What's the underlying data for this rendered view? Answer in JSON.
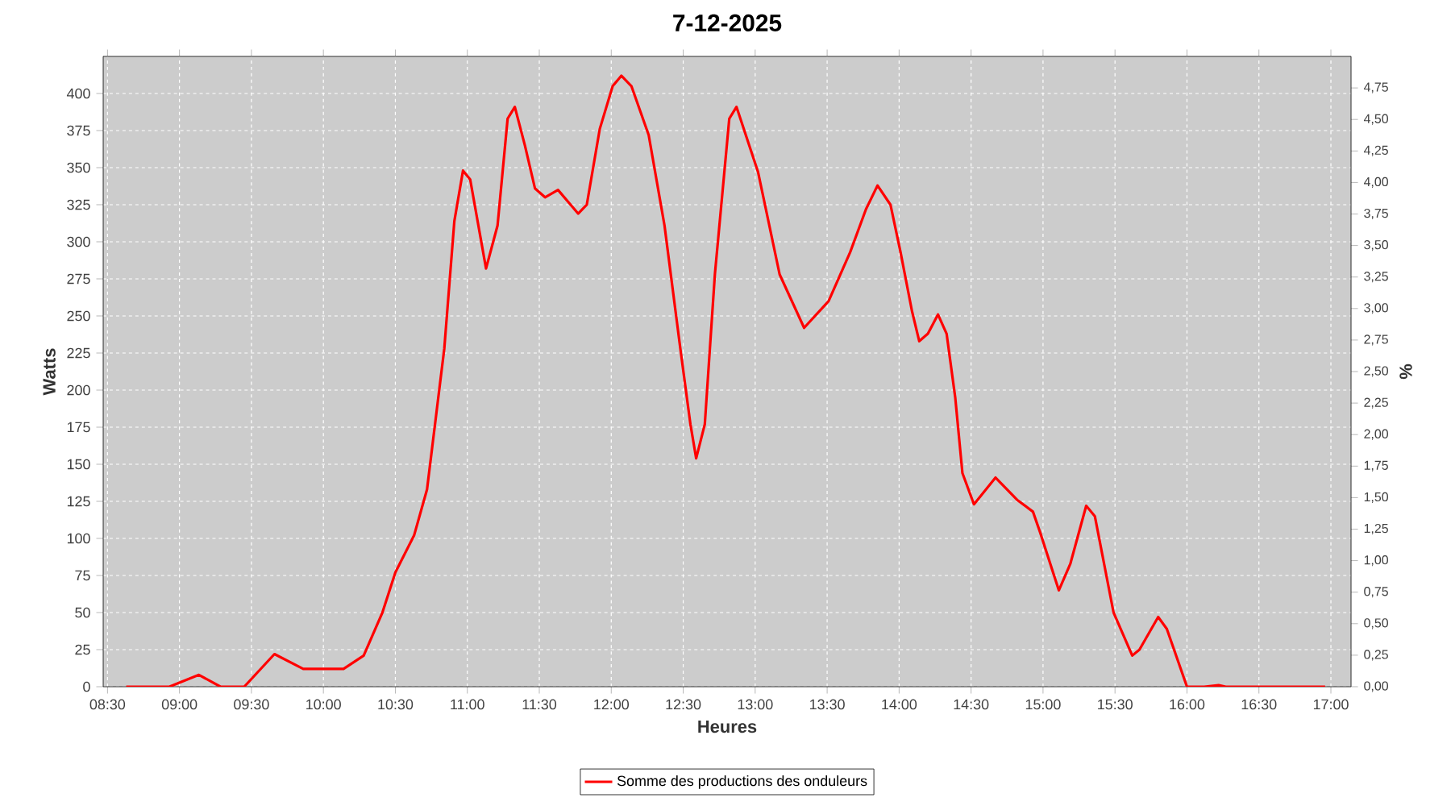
{
  "chart_data": {
    "type": "line",
    "title": "7-12-2025",
    "xlabel": "Heures",
    "ylabel": "Watts",
    "y2label": "%",
    "x": [
      8.63,
      8.87,
      8.93,
      9.135,
      9.285,
      9.45,
      9.66,
      9.86,
      10.14,
      10.28,
      10.41,
      10.5,
      10.63,
      10.72,
      10.84,
      10.91,
      10.97,
      11.02,
      11.13,
      11.21,
      11.28,
      11.33,
      11.4,
      11.47,
      11.54,
      11.63,
      11.77,
      11.83,
      11.92,
      12.01,
      12.07,
      12.14,
      12.26,
      12.37,
      12.48,
      12.55,
      12.59,
      12.65,
      12.72,
      12.82,
      12.87,
      13.02,
      13.17,
      13.34,
      13.51,
      13.66,
      13.77,
      13.85,
      13.94,
      14.01,
      14.09,
      14.14,
      14.2,
      14.27,
      14.33,
      14.39,
      14.44,
      14.52,
      14.67,
      14.82,
      14.93,
      14.98,
      15.11,
      15.19,
      15.3,
      15.36,
      15.49,
      15.62,
      15.67,
      15.8,
      15.86,
      16.0,
      16.12,
      16.22,
      16.27,
      16.96
    ],
    "series": [
      {
        "name": "Somme des productions des onduleurs",
        "color": "#ff0000",
        "values": [
          0,
          0,
          0,
          8,
          0,
          0,
          22,
          12,
          12,
          21,
          50,
          77,
          102,
          133,
          228,
          314,
          348,
          342,
          282,
          311,
          383,
          391,
          365,
          336,
          330,
          335,
          319,
          325,
          376,
          405,
          412,
          405,
          372,
          311,
          228,
          177,
          154,
          177,
          278,
          383,
          391,
          347,
          278,
          242,
          260,
          293,
          322,
          338,
          325,
          293,
          253,
          233,
          238,
          251,
          238,
          195,
          144,
          123,
          141,
          126,
          118,
          104,
          65,
          83,
          122,
          115,
          50,
          21,
          25,
          47,
          39,
          0,
          0,
          1,
          0,
          0
        ]
      }
    ],
    "xlim": [
      8.47,
      17.14
    ],
    "ylim": [
      0,
      425
    ],
    "y2lim": [
      0,
      5
    ],
    "xticks": [
      {
        "value": 8.5,
        "label": "08:30"
      },
      {
        "value": 9,
        "label": "09:00"
      },
      {
        "value": 9.5,
        "label": "09:30"
      },
      {
        "value": 10,
        "label": "10:00"
      },
      {
        "value": 10.5,
        "label": "10:30"
      },
      {
        "value": 11,
        "label": "11:00"
      },
      {
        "value": 11.5,
        "label": "11:30"
      },
      {
        "value": 12,
        "label": "12:00"
      },
      {
        "value": 12.5,
        "label": "12:30"
      },
      {
        "value": 13,
        "label": "13:00"
      },
      {
        "value": 13.5,
        "label": "13:30"
      },
      {
        "value": 14,
        "label": "14:00"
      },
      {
        "value": 14.5,
        "label": "14:30"
      },
      {
        "value": 15,
        "label": "15:00"
      },
      {
        "value": 15.5,
        "label": "15:30"
      },
      {
        "value": 16,
        "label": "16:00"
      },
      {
        "value": 16.5,
        "label": "16:30"
      },
      {
        "value": 17,
        "label": "17:00"
      }
    ],
    "yticks": [
      0,
      25,
      50,
      75,
      100,
      125,
      150,
      175,
      200,
      225,
      250,
      275,
      300,
      325,
      350,
      375,
      400
    ],
    "y2ticks": [
      {
        "value": 0,
        "label": "0,00"
      },
      {
        "value": 0.25,
        "label": "0,25"
      },
      {
        "value": 0.5,
        "label": "0,50"
      },
      {
        "value": 0.75,
        "label": "0,75"
      },
      {
        "value": 1,
        "label": "1,00"
      },
      {
        "value": 1.25,
        "label": "1,25"
      },
      {
        "value": 1.5,
        "label": "1,50"
      },
      {
        "value": 1.75,
        "label": "1,75"
      },
      {
        "value": 2,
        "label": "2,00"
      },
      {
        "value": 2.25,
        "label": "2,25"
      },
      {
        "value": 2.5,
        "label": "2,50"
      },
      {
        "value": 2.75,
        "label": "2,75"
      },
      {
        "value": 3,
        "label": "3,00"
      },
      {
        "value": 3.25,
        "label": "3,25"
      },
      {
        "value": 3.5,
        "label": "3,50"
      },
      {
        "value": 3.75,
        "label": "3,75"
      },
      {
        "value": 4,
        "label": "4,00"
      },
      {
        "value": 4.25,
        "label": "4,25"
      },
      {
        "value": 4.5,
        "label": "4,50"
      },
      {
        "value": 4.75,
        "label": "4,75"
      }
    ],
    "grid": true,
    "legend": "bottom",
    "marker": "none",
    "line_style": "solid"
  }
}
